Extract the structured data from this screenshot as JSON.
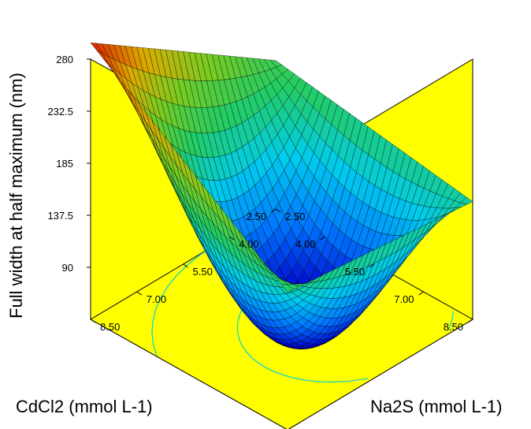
{
  "chart_data": {
    "type": "surface",
    "zlabel": "Full width at half maximum (nm)",
    "xlabel": "CdCl2  (mmol L-1)",
    "ylabel": "Na2S (mmol L-1)",
    "z_ticks": [
      "90",
      "137.5",
      "185",
      "232.5",
      "280"
    ],
    "x_ticks": [
      "2.50",
      "4.00",
      "5.50",
      "7.00",
      "8.50"
    ],
    "y_ticks": [
      "2.50",
      "4.00",
      "5.50",
      "7.00",
      "8.50"
    ],
    "xlim": [
      2.5,
      8.5
    ],
    "ylim": [
      2.5,
      8.5
    ],
    "zlim": [
      42.5,
      280
    ],
    "corners": [
      {
        "cdcl2": 2.5,
        "na2s": 8.5,
        "fwhm": 295
      },
      {
        "cdcl2": 2.5,
        "na2s": 2.5,
        "fwhm": 178
      },
      {
        "cdcl2": 8.5,
        "na2s": 8.5,
        "fwhm": 168
      },
      {
        "cdcl2": 8.5,
        "na2s": 2.5,
        "fwhm": 150
      }
    ],
    "minimum": {
      "cdcl2": 6.5,
      "na2s": 4.5,
      "fwhm": 42
    },
    "colormap": [
      "#0000cc",
      "#0077ff",
      "#00ccee",
      "#22cc66",
      "#77cc22",
      "#ddaa00",
      "#dd2200"
    ],
    "wall_color": "#ffff00",
    "line_color": "#000000",
    "contour_color": "#00d2d2"
  }
}
